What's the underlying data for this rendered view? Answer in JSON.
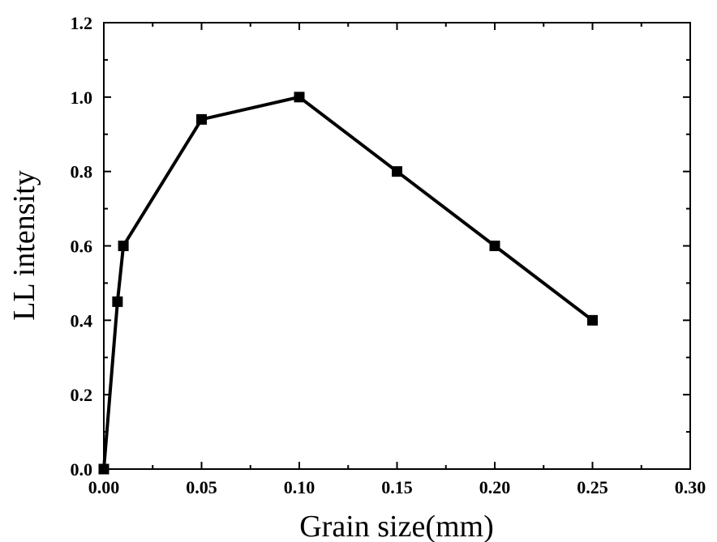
{
  "chart_data": {
    "type": "line",
    "title": "",
    "xlabel": "Grain size(mm)",
    "ylabel": "LL intensity",
    "xlim": [
      0.0,
      0.3
    ],
    "ylim": [
      0.0,
      1.2
    ],
    "x_ticks": [
      "0.00",
      "0.05",
      "0.10",
      "0.15",
      "0.20",
      "0.25",
      "0.30"
    ],
    "y_ticks": [
      "0.0",
      "0.2",
      "0.4",
      "0.6",
      "0.8",
      "1.0",
      "1.2"
    ],
    "grid": false,
    "marker": "square",
    "series": [
      {
        "color": "#000000",
        "x": [
          0.0,
          0.007,
          0.01,
          0.05,
          0.1,
          0.15,
          0.2,
          0.25
        ],
        "y": [
          0.0,
          0.45,
          0.6,
          0.94,
          1.0,
          0.8,
          0.6,
          0.4
        ]
      }
    ]
  }
}
